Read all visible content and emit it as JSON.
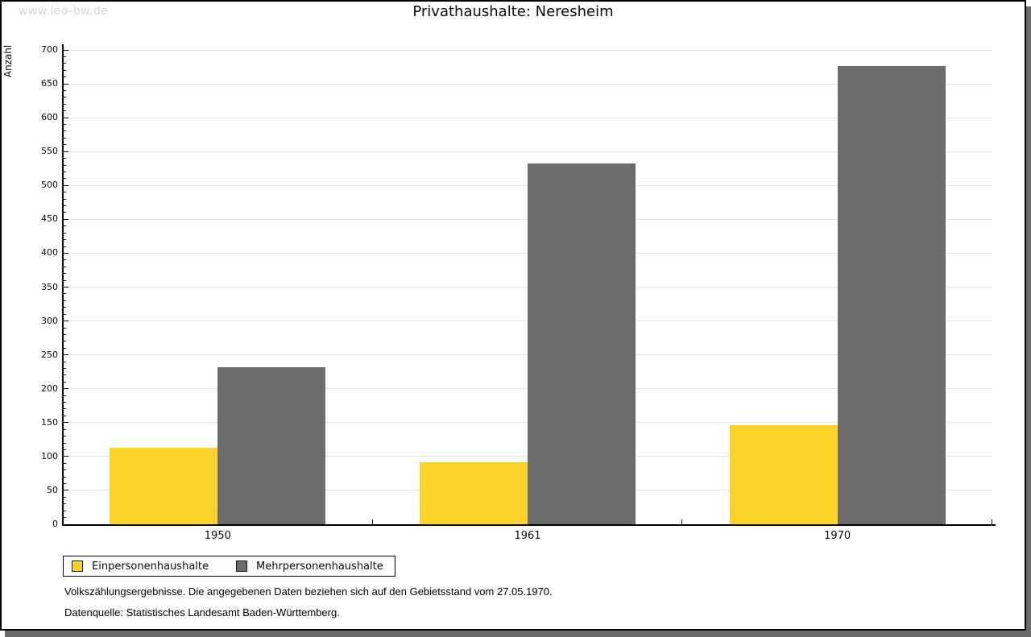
{
  "watermark": "www.leo-bw.de",
  "colors": {
    "series_yellow": "#fcd32b",
    "series_gray": "#6c6c6c",
    "gridline": "#e7e7e7",
    "axis": "#000000",
    "watermark": "#d5d5d5",
    "shadow": "#6a6a6a"
  },
  "chart_data": {
    "type": "bar",
    "title": "Privathaushalte: Neresheim",
    "xlabel": "",
    "ylabel": "Anzahl",
    "categories": [
      "1950",
      "1961",
      "1970"
    ],
    "series": [
      {
        "name": "Einpersonenhaushalte",
        "color": "#fcd32b",
        "values": [
          113,
          92,
          146
        ]
      },
      {
        "name": "Mehrpersonenhaushalte",
        "color": "#6c6c6c",
        "values": [
          232,
          533,
          676
        ]
      }
    ],
    "ylim": [
      0,
      700
    ],
    "ytick_step": 50,
    "yminor_step": 10,
    "grid": true,
    "legend_position": "bottom-left"
  },
  "footnotes": {
    "line1": "Volkszählungsergebnisse. Die angegebenen Daten beziehen sich auf den Gebietsstand vom 27.05.1970.",
    "line2": "Datenquelle: Statistisches Landesamt Baden-Württemberg."
  }
}
